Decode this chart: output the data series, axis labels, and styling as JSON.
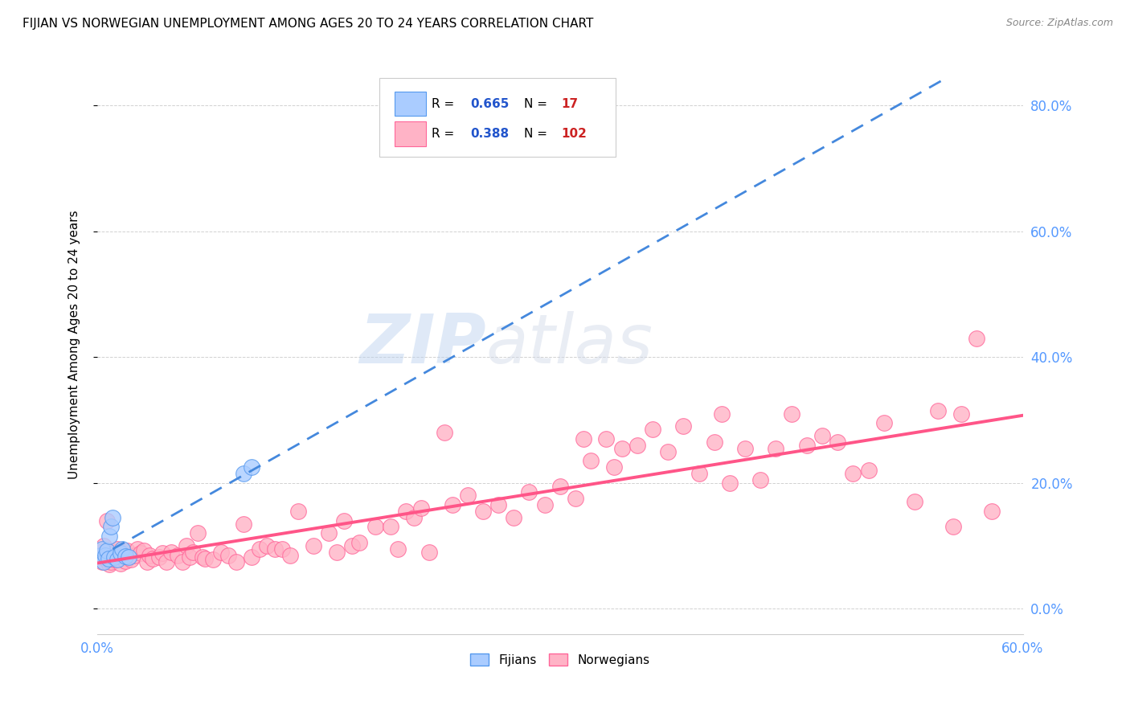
{
  "title": "FIJIAN VS NORWEGIAN UNEMPLOYMENT AMONG AGES 20 TO 24 YEARS CORRELATION CHART",
  "source": "Source: ZipAtlas.com",
  "tick_color": "#5599ff",
  "ylabel": "Unemployment Among Ages 20 to 24 years",
  "xlim": [
    0.0,
    0.6
  ],
  "ylim": [
    -0.04,
    0.88
  ],
  "xtick_positions": [
    0.0,
    0.6
  ],
  "xtick_labels": [
    "0.0%",
    "60.0%"
  ],
  "ytick_positions": [
    0.0,
    0.2,
    0.4,
    0.6,
    0.8
  ],
  "ytick_labels_right": [
    "0.0%",
    "20.0%",
    "40.0%",
    "60.0%",
    "80.0%"
  ],
  "fijian_color": "#aaccff",
  "fijian_edge_color": "#5599ee",
  "norwegian_color": "#ffb3c6",
  "norwegian_edge_color": "#ff6699",
  "fijian_R": 0.665,
  "fijian_N": 17,
  "norwegian_R": 0.388,
  "norwegian_N": 102,
  "fijian_trend_color": "#4488dd",
  "norwegian_trend_color": "#ff5588",
  "watermark_zip": "ZIP",
  "watermark_atlas": "atlas",
  "legend_label_fijian": "Fijians",
  "legend_label_norwegian": "Norwegians",
  "legend_R_color": "#2255cc",
  "legend_N_color": "#cc2222",
  "fijian_x": [
    0.002,
    0.003,
    0.004,
    0.005,
    0.006,
    0.007,
    0.008,
    0.009,
    0.01,
    0.011,
    0.013,
    0.015,
    0.016,
    0.018,
    0.02,
    0.095,
    0.1
  ],
  "fijian_y": [
    0.085,
    0.095,
    0.075,
    0.085,
    0.092,
    0.08,
    0.115,
    0.13,
    0.145,
    0.082,
    0.078,
    0.088,
    0.095,
    0.083,
    0.082,
    0.215,
    0.225
  ],
  "norwegian_x": [
    0.001,
    0.002,
    0.003,
    0.004,
    0.005,
    0.006,
    0.008,
    0.009,
    0.01,
    0.011,
    0.012,
    0.013,
    0.015,
    0.016,
    0.017,
    0.018,
    0.019,
    0.02,
    0.022,
    0.024,
    0.026,
    0.028,
    0.03,
    0.032,
    0.034,
    0.036,
    0.04,
    0.042,
    0.045,
    0.048,
    0.052,
    0.055,
    0.058,
    0.06,
    0.062,
    0.065,
    0.068,
    0.07,
    0.075,
    0.08,
    0.085,
    0.09,
    0.095,
    0.1,
    0.105,
    0.11,
    0.115,
    0.12,
    0.125,
    0.13,
    0.14,
    0.15,
    0.155,
    0.16,
    0.165,
    0.17,
    0.18,
    0.19,
    0.195,
    0.2,
    0.205,
    0.21,
    0.215,
    0.225,
    0.23,
    0.24,
    0.25,
    0.26,
    0.27,
    0.28,
    0.29,
    0.3,
    0.31,
    0.315,
    0.32,
    0.33,
    0.335,
    0.34,
    0.35,
    0.36,
    0.37,
    0.38,
    0.39,
    0.4,
    0.405,
    0.41,
    0.42,
    0.43,
    0.44,
    0.45,
    0.46,
    0.47,
    0.48,
    0.49,
    0.5,
    0.51,
    0.53,
    0.545,
    0.555,
    0.56,
    0.57,
    0.58
  ],
  "norwegian_y": [
    0.09,
    0.085,
    0.075,
    0.1,
    0.08,
    0.14,
    0.07,
    0.075,
    0.085,
    0.078,
    0.09,
    0.095,
    0.072,
    0.082,
    0.088,
    0.076,
    0.092,
    0.082,
    0.078,
    0.084,
    0.095,
    0.088,
    0.092,
    0.075,
    0.085,
    0.08,
    0.082,
    0.088,
    0.075,
    0.09,
    0.085,
    0.075,
    0.1,
    0.082,
    0.09,
    0.12,
    0.082,
    0.08,
    0.078,
    0.09,
    0.085,
    0.075,
    0.135,
    0.082,
    0.095,
    0.1,
    0.095,
    0.095,
    0.085,
    0.155,
    0.1,
    0.12,
    0.09,
    0.14,
    0.1,
    0.105,
    0.13,
    0.13,
    0.095,
    0.155,
    0.145,
    0.16,
    0.09,
    0.28,
    0.165,
    0.18,
    0.155,
    0.165,
    0.145,
    0.185,
    0.165,
    0.195,
    0.175,
    0.27,
    0.235,
    0.27,
    0.225,
    0.255,
    0.26,
    0.285,
    0.25,
    0.29,
    0.215,
    0.265,
    0.31,
    0.2,
    0.255,
    0.205,
    0.255,
    0.31,
    0.26,
    0.275,
    0.265,
    0.215,
    0.22,
    0.295,
    0.17,
    0.315,
    0.13,
    0.31,
    0.43,
    0.155
  ]
}
